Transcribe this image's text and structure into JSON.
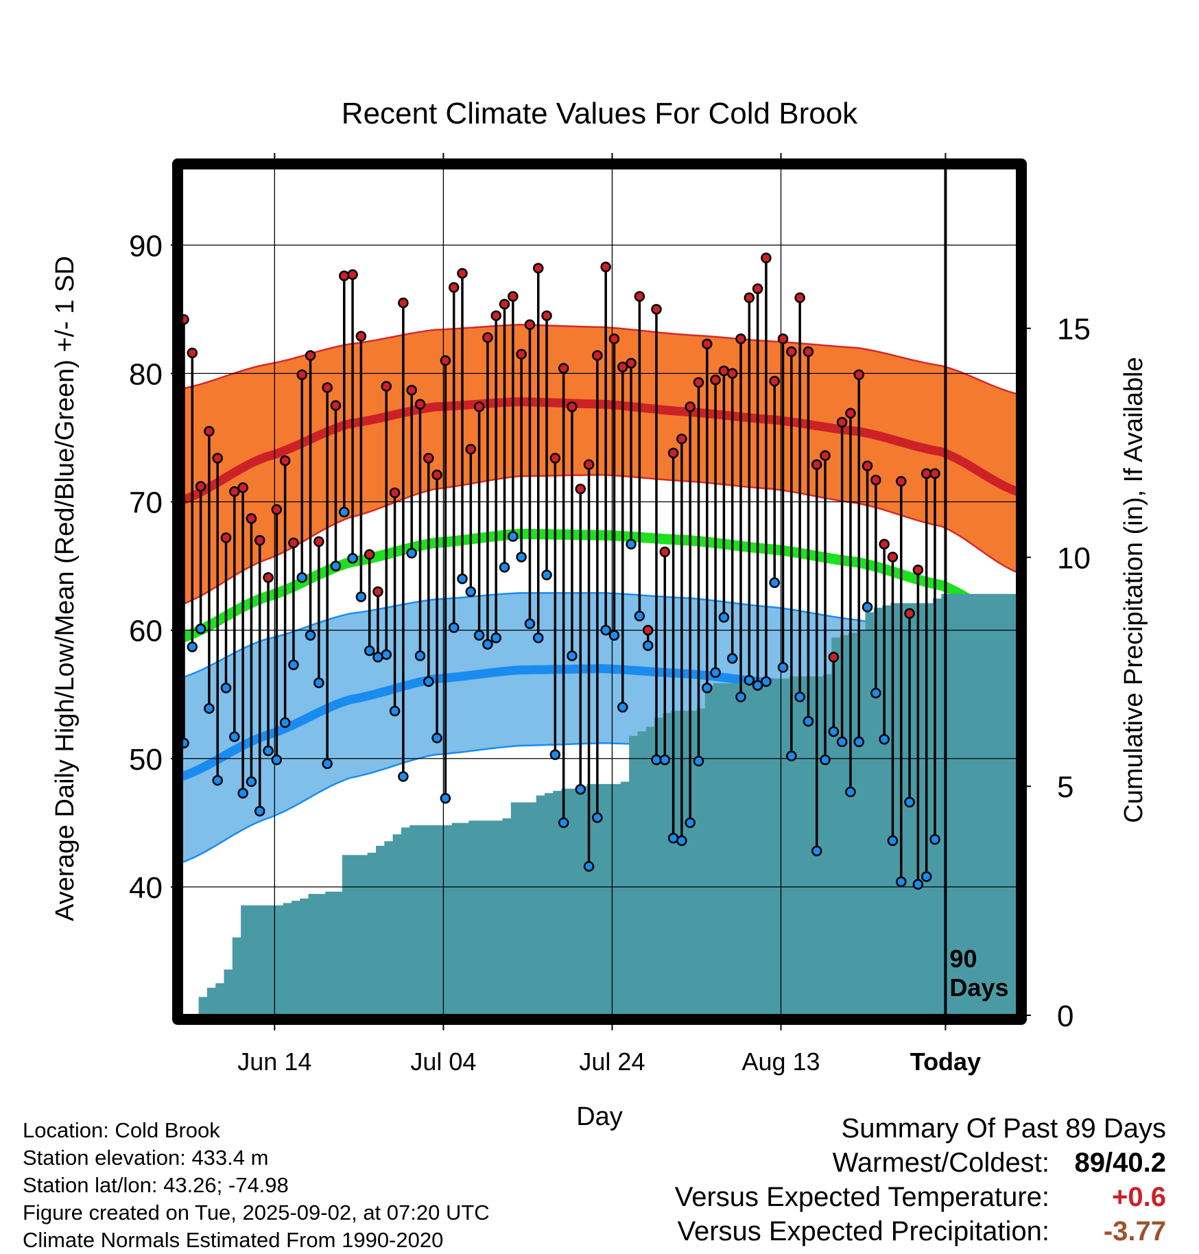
{
  "chart_data": {
    "type": "line",
    "title": "Recent Climate Values For Cold Brook",
    "xlabel": "Day",
    "ylabel": "Average Daily High/Low/Mean (Red/Blue/Green) +/- 1 SD",
    "y2label": "Cumulative Precipitation (in), If Available",
    "ylim": [
      30,
      96
    ],
    "y_ticks": [
      40,
      50,
      60,
      70,
      80,
      90
    ],
    "y2lim": [
      0,
      18.5
    ],
    "y2_ticks": [
      0,
      5,
      10,
      15
    ],
    "x_day_range": [
      0,
      99
    ],
    "x_ticks": [
      {
        "day": 11,
        "label": "Jun 14"
      },
      {
        "day": 31,
        "label": "Jul 04"
      },
      {
        "day": 51,
        "label": "Jul 24"
      },
      {
        "day": 71,
        "label": "Aug 13"
      },
      {
        "day": 90.5,
        "label": "Today"
      }
    ],
    "today_day": 90.5,
    "today_label": "90\nDays",
    "grid": true,
    "colors": {
      "high_band": "#f47a30",
      "high_band_edge": "#d42a2a",
      "high_mean": "#cc2127",
      "low_band": "#7fbfe9",
      "low_band_edge": "#1a8cf0",
      "low_mean": "#1a8cf0",
      "mean_line": "#1ee01e",
      "precip_fill": "#4a9aa5",
      "high_dot": "#cc2127",
      "low_dot": "#1a8cf0"
    },
    "normals": {
      "day": [
        0,
        10,
        20,
        30,
        40,
        50,
        60,
        70,
        80,
        90,
        99
      ],
      "high_mean": [
        70.1,
        73.5,
        76.1,
        77.4,
        77.8,
        77.6,
        77.0,
        76.4,
        75.5,
        73.9,
        70.8
      ],
      "high_plus_sd": [
        78.8,
        80.7,
        82.3,
        83.4,
        83.8,
        83.6,
        83.0,
        82.5,
        82.0,
        80.6,
        78.4
      ],
      "high_minus_sd": [
        62.0,
        65.5,
        68.8,
        71.0,
        72.0,
        72.1,
        71.6,
        71.0,
        69.9,
        68.1,
        64.5
      ],
      "mean": [
        59.4,
        62.6,
        65.3,
        66.8,
        67.5,
        67.4,
        67.0,
        66.3,
        65.3,
        63.5,
        60.3
      ],
      "low_mean": [
        48.6,
        51.8,
        54.6,
        56.2,
        56.9,
        57.0,
        56.6,
        55.9,
        54.7,
        52.4,
        49.3
      ],
      "low_plus_sd": [
        56.3,
        59.3,
        61.3,
        62.4,
        62.9,
        62.9,
        62.5,
        61.8,
        60.8,
        59.3,
        57.0
      ],
      "low_minus_sd": [
        41.9,
        45.3,
        48.5,
        50.3,
        51.0,
        51.2,
        51.0,
        50.4,
        48.8,
        46.3,
        42.4
      ]
    },
    "daily": {
      "day": [
        0,
        1,
        2,
        3,
        4,
        5,
        6,
        7,
        8,
        9,
        10,
        11,
        12,
        13,
        14,
        15,
        16,
        17,
        18,
        19,
        20,
        21,
        22,
        23,
        24,
        25,
        26,
        27,
        28,
        29,
        30,
        31,
        32,
        33,
        34,
        35,
        36,
        37,
        38,
        39,
        40,
        41,
        42,
        43,
        44,
        45,
        46,
        47,
        48,
        49,
        50,
        51,
        52,
        53,
        54,
        55,
        56,
        57,
        58,
        59,
        60,
        61,
        62,
        63,
        64,
        65,
        66,
        67,
        68,
        69,
        70,
        71,
        72,
        73,
        74,
        75,
        76,
        77,
        78,
        79,
        80,
        81,
        82,
        83,
        84,
        85,
        86,
        87,
        88,
        89
      ],
      "high": [
        84.2,
        81.6,
        71.2,
        75.5,
        73.4,
        67.2,
        70.8,
        71.1,
        68.7,
        67.0,
        64.1,
        69.4,
        73.2,
        66.8,
        79.9,
        81.4,
        66.9,
        78.9,
        77.5,
        87.6,
        87.7,
        82.9,
        65.9,
        63.0,
        79.0,
        70.7,
        85.5,
        78.7,
        77.6,
        73.4,
        72.1,
        81.0,
        86.7,
        87.8,
        74.1,
        77.4,
        82.8,
        84.5,
        85.4,
        86.0,
        81.5,
        83.8,
        88.2,
        84.5,
        73.4,
        80.4,
        77.4,
        71.0,
        72.9,
        81.4,
        88.3,
        82.7,
        80.5,
        80.8,
        86.0,
        60.0,
        85.0,
        66.1,
        73.8,
        74.9,
        77.4,
        79.3,
        82.3,
        79.5,
        80.2,
        80.0,
        82.7,
        85.9,
        86.6,
        89.0,
        79.4,
        82.7,
        81.7,
        85.9,
        81.7,
        72.9,
        73.6,
        57.9,
        76.2,
        76.9,
        79.9,
        72.8,
        71.7,
        66.7,
        65.7,
        71.6,
        61.3,
        64.7,
        72.2,
        72.2
      ],
      "low": [
        51.2,
        58.7,
        60.1,
        53.9,
        48.3,
        55.5,
        51.7,
        47.3,
        48.2,
        45.9,
        50.6,
        49.9,
        52.8,
        57.3,
        64.1,
        59.6,
        55.9,
        49.6,
        65.0,
        69.2,
        65.6,
        62.6,
        58.4,
        57.9,
        58.1,
        53.7,
        48.6,
        66.0,
        58.0,
        56.0,
        51.6,
        46.9,
        60.2,
        64.0,
        63.0,
        59.6,
        58.9,
        59.4,
        64.9,
        67.3,
        65.7,
        60.5,
        59.4,
        64.3,
        50.3,
        45.0,
        58.0,
        47.6,
        41.6,
        45.4,
        60.0,
        59.6,
        54.0,
        66.7,
        61.1,
        58.8,
        49.9,
        49.9,
        43.8,
        43.6,
        45.0,
        49.8,
        55.5,
        56.7,
        61.0,
        57.8,
        54.8,
        56.1,
        55.7,
        56.0,
        63.7,
        57.1,
        50.2,
        54.8,
        52.9,
        42.8,
        49.9,
        52.1,
        51.3,
        47.4,
        51.3,
        61.8,
        55.1,
        51.5,
        43.6,
        40.4,
        46.6,
        40.2,
        40.8,
        43.7
      ]
    },
    "cumulative_precip": {
      "day": [
        0,
        1,
        2,
        3,
        4,
        5,
        6,
        7,
        8,
        9,
        10,
        11,
        12,
        13,
        14,
        15,
        16,
        17,
        18,
        19,
        20,
        21,
        22,
        23,
        24,
        25,
        26,
        27,
        28,
        29,
        30,
        31,
        32,
        33,
        34,
        35,
        36,
        37,
        38,
        39,
        40,
        41,
        42,
        43,
        44,
        45,
        46,
        47,
        48,
        49,
        50,
        51,
        52,
        53,
        54,
        55,
        56,
        57,
        58,
        59,
        60,
        61,
        62,
        63,
        64,
        65,
        66,
        67,
        68,
        69,
        70,
        71,
        72,
        73,
        74,
        75,
        76,
        77,
        78,
        79,
        80,
        81,
        82,
        83,
        84,
        85,
        86,
        87,
        88,
        89,
        90,
        91,
        92,
        93,
        94,
        95,
        96,
        97,
        98,
        99
      ],
      "value": [
        0,
        0,
        0.4,
        0.6,
        0.7,
        1.0,
        1.7,
        2.4,
        2.4,
        2.4,
        2.4,
        2.4,
        2.45,
        2.5,
        2.55,
        2.65,
        2.65,
        2.7,
        2.7,
        3.5,
        3.5,
        3.5,
        3.55,
        3.7,
        3.8,
        3.95,
        4.1,
        4.15,
        4.15,
        4.15,
        4.15,
        4.15,
        4.2,
        4.2,
        4.25,
        4.25,
        4.25,
        4.25,
        4.3,
        4.65,
        4.65,
        4.65,
        4.8,
        4.85,
        4.9,
        4.95,
        4.95,
        5.0,
        5.05,
        5.05,
        5.05,
        5.05,
        5.1,
        6.1,
        6.2,
        6.3,
        6.5,
        6.6,
        6.65,
        6.65,
        6.65,
        6.7,
        7.2,
        7.25,
        7.25,
        7.25,
        7.25,
        7.3,
        7.3,
        7.3,
        7.35,
        7.35,
        7.4,
        7.4,
        7.4,
        7.4,
        7.45,
        8.25,
        8.3,
        8.35,
        8.4,
        8.8,
        8.9,
        8.95,
        9.0,
        9.0,
        9.0,
        9.0,
        9.0,
        9.1,
        9.2,
        9.2,
        9.2,
        9.2,
        9.2,
        9.2,
        9.2,
        9.2,
        9.2,
        9.2
      ]
    }
  },
  "info": {
    "location": "Location: Cold Brook",
    "elevation": "Station elevation: 433.4 m",
    "latlon": "Station lat/lon: 43.26; -74.98",
    "created": "Figure created on Tue, 2025-09-02, at 07:20 UTC",
    "normals": "Climate Normals Estimated From 1990-2020"
  },
  "summary": {
    "title": "Summary Of Past 89 Days",
    "warmest_label": "Warmest/Coldest:",
    "warmest_value": "89/40.2",
    "temp_label": "Versus Expected Temperature:",
    "temp_value": "+0.6",
    "temp_color": "#cc2127",
    "precip_label": "Versus Expected Precipitation:",
    "precip_value": "-3.77",
    "precip_color": "#a0522d"
  }
}
